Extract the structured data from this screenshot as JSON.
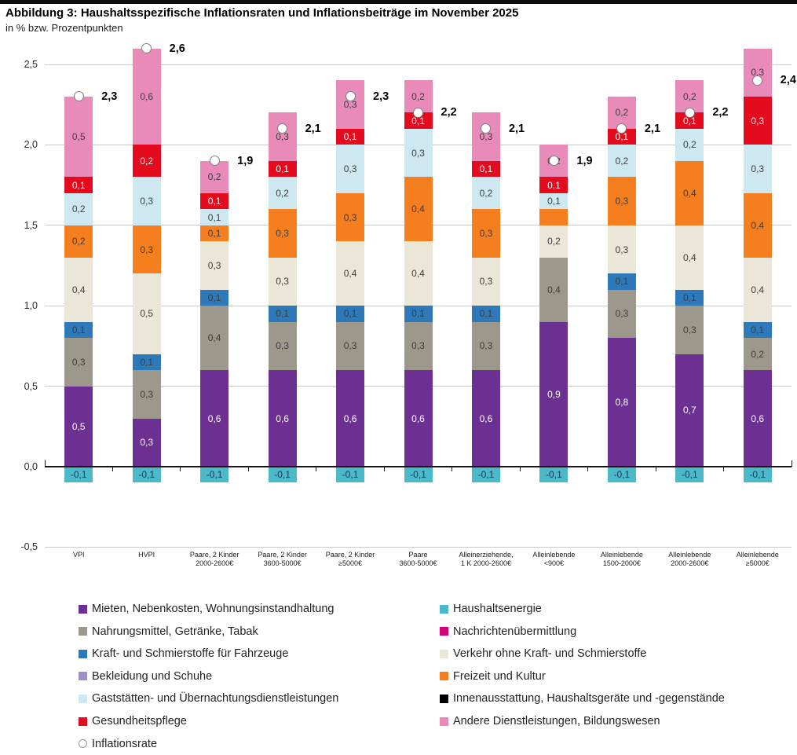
{
  "chart_data": {
    "type": "stacked-bar",
    "title": "Abbildung 3: Haushaltsspezifische Inflationsraten und Inflationsbeiträge im November 2025",
    "subtitle": "in % bzw. Prozentpunkten",
    "ylim": [
      -0.55,
      2.65
    ],
    "grid": true,
    "y_axis": {
      "ticks": [
        {
          "value": 2.5,
          "label": "2,5"
        },
        {
          "value": 2.0,
          "label": "2,0"
        },
        {
          "value": 1.5,
          "label": "1,5"
        },
        {
          "value": 1.0,
          "label": "1,0"
        },
        {
          "value": 0.5,
          "label": "0,5"
        },
        {
          "value": 0.0,
          "label": "0,0"
        },
        {
          "value": -0.5,
          "label": "-0,5"
        }
      ]
    },
    "colors": {
      "mieten": "#6C3093",
      "haushaltsenergie": "#4BB9C9",
      "nahrungsmittel": "#9C998C",
      "nachrichten": "#D60077",
      "kraftstoffe": "#2E79B9",
      "verkehr": "#EAE6D8",
      "bekleidung": "#9E8EC9",
      "freizeit": "#F57E1E",
      "gaststaetten": "#CDE8F0",
      "innenausstattung": "#000000",
      "gesundheit": "#E40B1E",
      "andere": "#E98BB9"
    },
    "light_text_keys": [
      "mieten",
      "gesundheit"
    ],
    "bars": [
      {
        "cat1": "VPI",
        "cat2": "",
        "rate": 2.3,
        "rate_label": "2,3",
        "segments": [
          [
            "mieten",
            0.5,
            "0,5"
          ],
          [
            "nahrungsmittel",
            0.3,
            "0,3"
          ],
          [
            "kraftstoffe",
            0.1,
            "0,1"
          ],
          [
            "verkehr",
            0.4,
            "0,4"
          ],
          [
            "freizeit",
            0.2,
            "0,2"
          ],
          [
            "gaststaetten",
            0.2,
            "0,2"
          ],
          [
            "gesundheit",
            0.1,
            "0,1"
          ],
          [
            "andere",
            0.5,
            "0,5"
          ]
        ],
        "below": [
          "haushaltsenergie",
          -0.1,
          "-0,1"
        ]
      },
      {
        "cat1": "HVPI",
        "cat2": "",
        "rate": 2.6,
        "rate_label": "2,6",
        "segments": [
          [
            "mieten",
            0.3,
            "0,3"
          ],
          [
            "nahrungsmittel",
            0.3,
            "0,3"
          ],
          [
            "kraftstoffe",
            0.1,
            "0,1"
          ],
          [
            "verkehr",
            0.5,
            "0,5"
          ],
          [
            "freizeit",
            0.3,
            "0,3"
          ],
          [
            "gaststaetten",
            0.3,
            "0,3"
          ],
          [
            "gesundheit",
            0.2,
            "0,2"
          ],
          [
            "andere",
            0.6,
            "0,6"
          ]
        ],
        "below": [
          "haushaltsenergie",
          -0.1,
          "-0,1"
        ]
      },
      {
        "cat1": "Paare, 2 Kinder",
        "cat2": "2000-2600€",
        "rate": 1.9,
        "rate_label": "1,9",
        "segments": [
          [
            "mieten",
            0.6,
            "0,6"
          ],
          [
            "nahrungsmittel",
            0.4,
            "0,4"
          ],
          [
            "kraftstoffe",
            0.1,
            "0,1"
          ],
          [
            "verkehr",
            0.3,
            "0,3"
          ],
          [
            "freizeit",
            0.1,
            "0,1"
          ],
          [
            "gaststaetten",
            0.1,
            "0,1"
          ],
          [
            "gesundheit",
            0.1,
            "0,1"
          ],
          [
            "andere",
            0.2,
            "0,2"
          ]
        ],
        "below": [
          "haushaltsenergie",
          -0.1,
          "-0,1"
        ]
      },
      {
        "cat1": "Paare, 2 Kinder",
        "cat2": "3600-5000€",
        "rate": 2.1,
        "rate_label": "2,1",
        "segments": [
          [
            "mieten",
            0.6,
            "0,6"
          ],
          [
            "nahrungsmittel",
            0.3,
            "0,3"
          ],
          [
            "kraftstoffe",
            0.1,
            "0,1"
          ],
          [
            "verkehr",
            0.3,
            "0,3"
          ],
          [
            "freizeit",
            0.3,
            "0,3"
          ],
          [
            "gaststaetten",
            0.2,
            "0,2"
          ],
          [
            "gesundheit",
            0.1,
            "0,1"
          ],
          [
            "andere",
            0.3,
            "0,3"
          ]
        ],
        "below": [
          "haushaltsenergie",
          -0.1,
          "-0,1"
        ]
      },
      {
        "cat1": "Paare, 2 Kinder",
        "cat2": "≥5000€",
        "rate": 2.3,
        "rate_label": "2,3",
        "segments": [
          [
            "mieten",
            0.6,
            "0,6"
          ],
          [
            "nahrungsmittel",
            0.3,
            "0,3"
          ],
          [
            "kraftstoffe",
            0.1,
            "0,1"
          ],
          [
            "verkehr",
            0.4,
            "0,4"
          ],
          [
            "freizeit",
            0.3,
            "0,3"
          ],
          [
            "gaststaetten",
            0.3,
            "0,3"
          ],
          [
            "gesundheit",
            0.1,
            "0,1"
          ],
          [
            "andere",
            0.3,
            "0,3"
          ]
        ],
        "below": [
          "haushaltsenergie",
          -0.1,
          "-0,1"
        ]
      },
      {
        "cat1": "Paare",
        "cat2": "3600-5000€",
        "rate": 2.2,
        "rate_label": "2,2",
        "segments": [
          [
            "mieten",
            0.6,
            "0,6"
          ],
          [
            "nahrungsmittel",
            0.3,
            "0,3"
          ],
          [
            "kraftstoffe",
            0.1,
            "0,1"
          ],
          [
            "verkehr",
            0.4,
            "0,4"
          ],
          [
            "freizeit",
            0.4,
            "0,4"
          ],
          [
            "gaststaetten",
            0.3,
            "0,3"
          ],
          [
            "gesundheit",
            0.1,
            "0,1"
          ],
          [
            "andere",
            0.2,
            "0,2"
          ]
        ],
        "below": [
          "haushaltsenergie",
          -0.1,
          "-0,1"
        ]
      },
      {
        "cat1": "Alleinerziehende,",
        "cat2": "1 K 2000-2600€",
        "rate": 2.1,
        "rate_label": "2,1",
        "segments": [
          [
            "mieten",
            0.6,
            "0,6"
          ],
          [
            "nahrungsmittel",
            0.3,
            "0,3"
          ],
          [
            "kraftstoffe",
            0.1,
            "0,1"
          ],
          [
            "verkehr",
            0.3,
            "0,3"
          ],
          [
            "freizeit",
            0.3,
            "0,3"
          ],
          [
            "gaststaetten",
            0.2,
            "0,2"
          ],
          [
            "gesundheit",
            0.1,
            "0,1"
          ],
          [
            "andere",
            0.3,
            "0,3"
          ]
        ],
        "below": [
          "haushaltsenergie",
          -0.1,
          "-0,1"
        ]
      },
      {
        "cat1": "Alleinlebende",
        "cat2": "<900€",
        "rate": 1.9,
        "rate_label": "1,9",
        "segments": [
          [
            "mieten",
            0.9,
            "0,9"
          ],
          [
            "nahrungsmittel",
            0.4,
            "0,4"
          ],
          [
            "verkehr",
            0.2,
            "0,2"
          ],
          [
            "freizeit",
            0.1,
            ""
          ],
          [
            "gaststaetten",
            0.1,
            "0,1"
          ],
          [
            "gesundheit",
            0.1,
            "0,1"
          ],
          [
            "andere",
            0.2,
            "0,2"
          ]
        ],
        "below": [
          "haushaltsenergie",
          -0.1,
          "-0,1"
        ]
      },
      {
        "cat1": "Alleinlebende",
        "cat2": "1500-2000€",
        "rate": 2.1,
        "rate_label": "2,1",
        "segments": [
          [
            "mieten",
            0.8,
            "0,8"
          ],
          [
            "nahrungsmittel",
            0.3,
            "0,3"
          ],
          [
            "kraftstoffe",
            0.1,
            "0,1"
          ],
          [
            "verkehr",
            0.3,
            "0,3"
          ],
          [
            "freizeit",
            0.3,
            "0,3"
          ],
          [
            "gaststaetten",
            0.2,
            "0,2"
          ],
          [
            "gesundheit",
            0.1,
            "0,1"
          ],
          [
            "andere",
            0.2,
            "0,2"
          ]
        ],
        "below": [
          "haushaltsenergie",
          -0.1,
          "-0,1"
        ]
      },
      {
        "cat1": "Alleinlebende",
        "cat2": "2000-2600€",
        "rate": 2.2,
        "rate_label": "2,2",
        "segments": [
          [
            "mieten",
            0.7,
            "0,7"
          ],
          [
            "nahrungsmittel",
            0.3,
            "0,3"
          ],
          [
            "kraftstoffe",
            0.1,
            "0,1"
          ],
          [
            "verkehr",
            0.4,
            "0,4"
          ],
          [
            "freizeit",
            0.4,
            "0,4"
          ],
          [
            "gaststaetten",
            0.2,
            "0,2"
          ],
          [
            "gesundheit",
            0.1,
            "0,1"
          ],
          [
            "andere",
            0.2,
            "0,2"
          ]
        ],
        "below": [
          "haushaltsenergie",
          -0.1,
          "-0,1"
        ]
      },
      {
        "cat1": "Alleinlebende",
        "cat2": "≥5000€",
        "rate": 2.4,
        "rate_label": "2,4",
        "segments": [
          [
            "mieten",
            0.6,
            "0,6"
          ],
          [
            "nahrungsmittel",
            0.2,
            "0,2"
          ],
          [
            "kraftstoffe",
            0.1,
            "0,1"
          ],
          [
            "verkehr",
            0.4,
            "0,4"
          ],
          [
            "freizeit",
            0.4,
            "0,4"
          ],
          [
            "gaststaetten",
            0.3,
            "0,3"
          ],
          [
            "gesundheit",
            0.3,
            "0,3"
          ],
          [
            "andere",
            0.3,
            "0,3"
          ]
        ],
        "below": [
          "haushaltsenergie",
          -0.1,
          "-0,1"
        ]
      }
    ],
    "legend": {
      "left": [
        {
          "key": "mieten",
          "label": "Mieten, Nebenkosten, Wohnungsinstandhaltung"
        },
        {
          "key": "nahrungsmittel",
          "label": "Nahrungsmittel, Getränke, Tabak"
        },
        {
          "key": "kraftstoffe",
          "label": "Kraft- und Schmierstoffe für Fahrzeuge"
        },
        {
          "key": "bekleidung",
          "label": "Bekleidung und Schuhe"
        },
        {
          "key": "gaststaetten",
          "label": "Gaststätten- und Übernachtungsdienstleistungen"
        },
        {
          "key": "gesundheit",
          "label": "Gesundheitspflege"
        },
        {
          "key": "marker",
          "label": "Inflationsrate"
        }
      ],
      "right": [
        {
          "key": "haushaltsenergie",
          "label": "Haushaltsenergie"
        },
        {
          "key": "nachrichten",
          "label": "Nachrichtenübermittlung"
        },
        {
          "key": "verkehr",
          "label": "Verkehr ohne Kraft- und Schmierstoffe"
        },
        {
          "key": "freizeit",
          "label": "Freizeit und Kultur"
        },
        {
          "key": "innenausstattung",
          "label": "Innenausstattung, Haushaltsgeräte und -gegenstände"
        },
        {
          "key": "andere",
          "label": "Andere Dienstleistungen, Bildungswesen"
        }
      ]
    }
  }
}
